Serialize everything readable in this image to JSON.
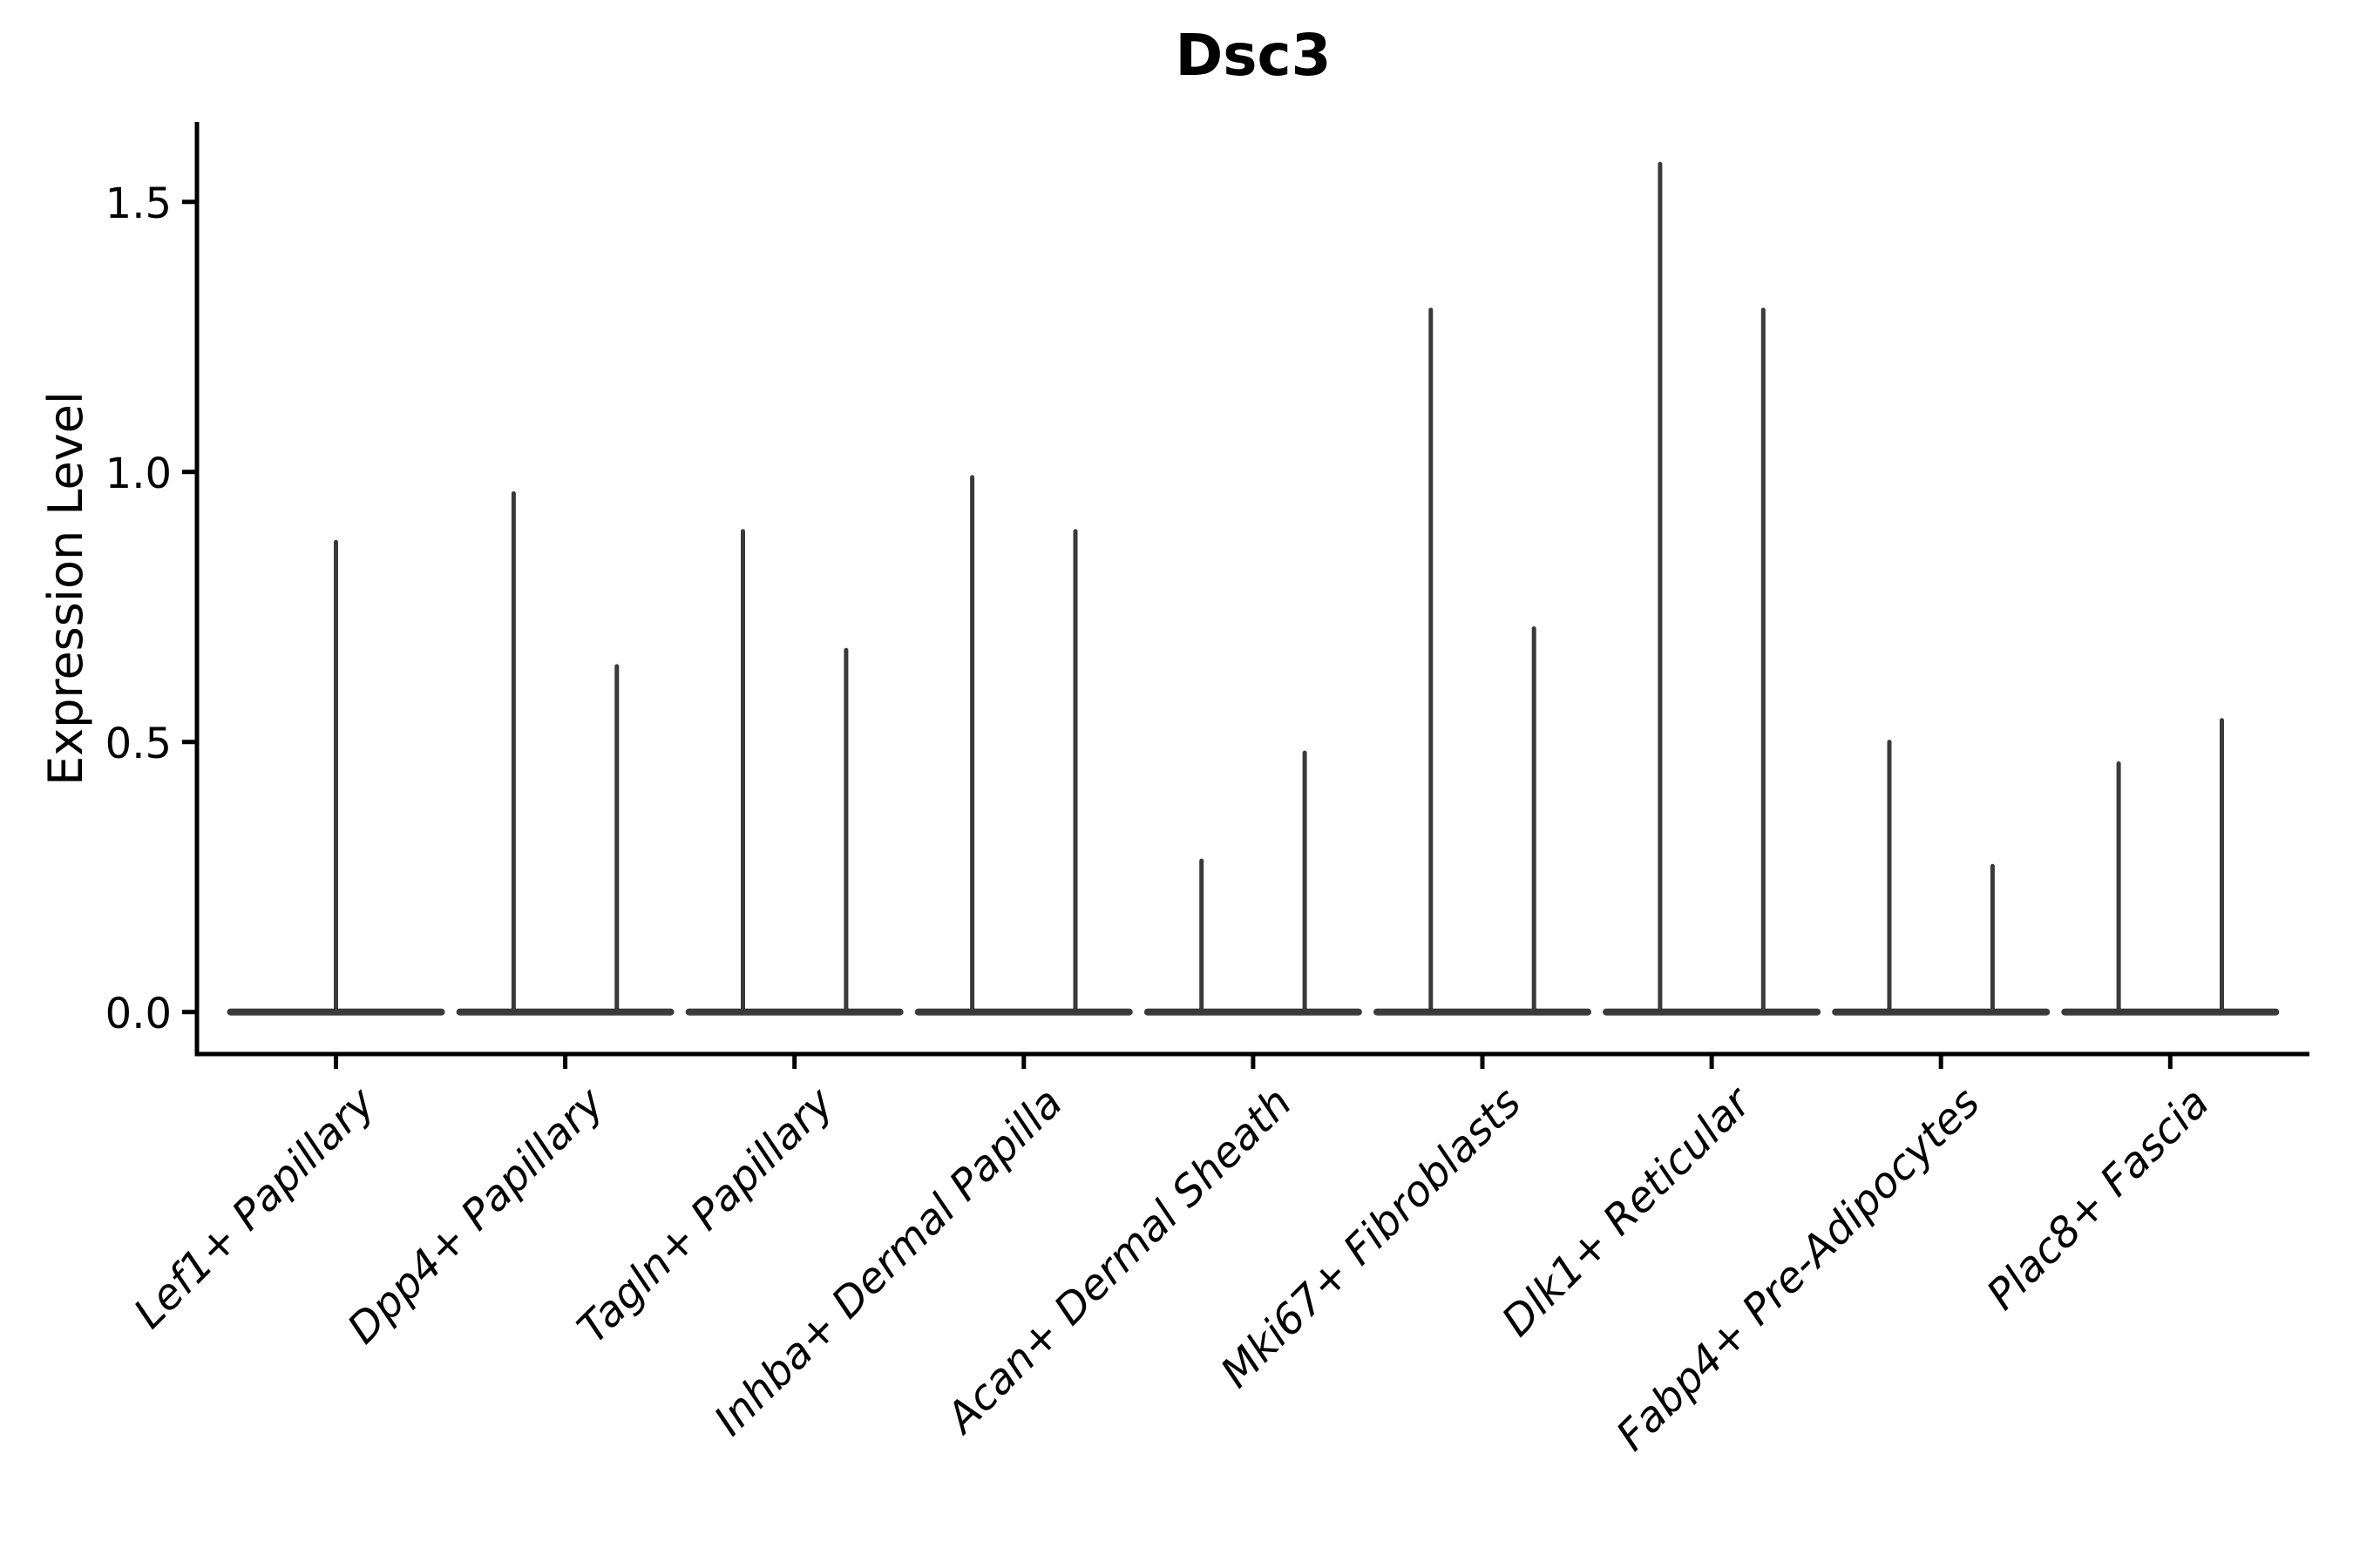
{
  "figure": {
    "title": "Dsc3",
    "y_axis": {
      "label": "Expression Level",
      "ticks": [
        {
          "label": "0.0",
          "value": 0.0
        },
        {
          "label": "0.5",
          "value": 0.5
        },
        {
          "label": "1.0",
          "value": 1.0
        },
        {
          "label": "1.5",
          "value": 1.5
        }
      ]
    },
    "x_axis": {
      "label": ""
    }
  },
  "chart_data": {
    "type": "violin",
    "title": "Dsc3",
    "xlabel": "",
    "ylabel": "Expression Level",
    "ylim": [
      -0.08,
      1.65
    ],
    "yticks": [
      0.0,
      0.5,
      1.0,
      1.5
    ],
    "grid": false,
    "legend": "none",
    "baseline_value": 0.0,
    "categories": [
      "Lef1+ Papillary",
      "Dpp4+ Papillary",
      "Tagln+ Papillary",
      "Inhba+ Dermal Papilla",
      "Acan+ Dermal Sheath",
      "Mki67+ Fibroblasts",
      "Dlk1+ Reticular",
      "Fabp4+ Pre-Adipocytes",
      "Plac8+ Fascia"
    ],
    "violins": [
      {
        "category": "Lef1+ Papillary",
        "layout": "single-centered",
        "spike_maxima": [
          0.87
        ]
      },
      {
        "category": "Dpp4+ Papillary",
        "layout": "pair",
        "spike_maxima": [
          0.96,
          0.64
        ]
      },
      {
        "category": "Tagln+ Papillary",
        "layout": "pair",
        "spike_maxima": [
          0.89,
          0.67
        ]
      },
      {
        "category": "Inhba+ Dermal Papilla",
        "layout": "pair",
        "spike_maxima": [
          0.99,
          0.89
        ]
      },
      {
        "category": "Acan+ Dermal Sheath",
        "layout": "pair",
        "spike_maxima": [
          0.28,
          0.48
        ]
      },
      {
        "category": "Mki67+ Fibroblasts",
        "layout": "pair",
        "spike_maxima": [
          1.3,
          0.71
        ]
      },
      {
        "category": "Dlk1+ Reticular",
        "layout": "pair",
        "spike_maxima": [
          1.57,
          1.3
        ]
      },
      {
        "category": "Fabp4+ Pre-Adipocytes",
        "layout": "pair",
        "spike_maxima": [
          0.5,
          0.27
        ]
      },
      {
        "category": "Plac8+ Fascia",
        "layout": "pair",
        "spike_maxima": [
          0.46,
          0.54
        ]
      }
    ],
    "style": {
      "violin_color": "#3a3a3a",
      "axis_color": "#000000",
      "background_color": "#ffffff"
    }
  }
}
